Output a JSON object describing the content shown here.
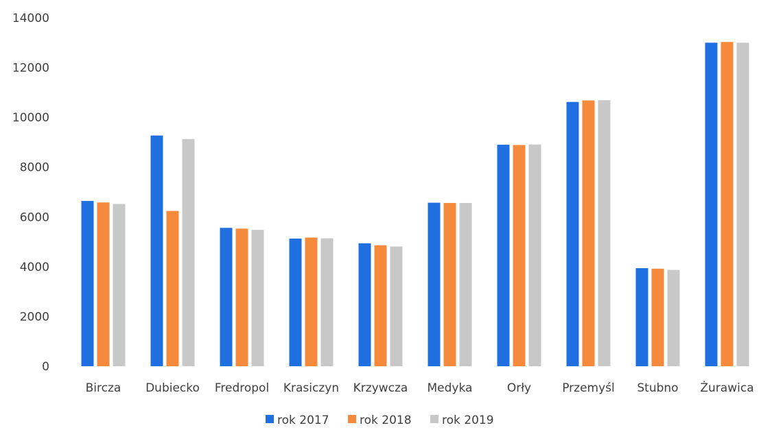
{
  "chart_data": {
    "type": "bar",
    "categories": [
      "Bircza",
      "Dubiecko",
      "Fredropol",
      "Krasiczyn",
      "Krzywcza",
      "Medyka",
      "Orły",
      "Przemyśl",
      "Stubno",
      "Żurawica"
    ],
    "series": [
      {
        "name": "rok 2017",
        "color": "#1f6fe0",
        "values": [
          6640,
          9270,
          5560,
          5130,
          4940,
          6570,
          8900,
          10620,
          3940,
          13000
        ]
      },
      {
        "name": "rok 2018",
        "color": "#f58a3c",
        "values": [
          6580,
          6240,
          5530,
          5170,
          4860,
          6560,
          8890,
          10680,
          3920,
          13030
        ]
      },
      {
        "name": "rok 2019",
        "color": "#c8c8c8",
        "values": [
          6520,
          9130,
          5480,
          5140,
          4810,
          6560,
          8910,
          10690,
          3870,
          13000
        ]
      }
    ],
    "ylim": [
      0,
      14000
    ],
    "yticks": [
      0,
      2000,
      4000,
      6000,
      8000,
      10000,
      12000,
      14000
    ],
    "grid": false,
    "legend": "bottom"
  }
}
